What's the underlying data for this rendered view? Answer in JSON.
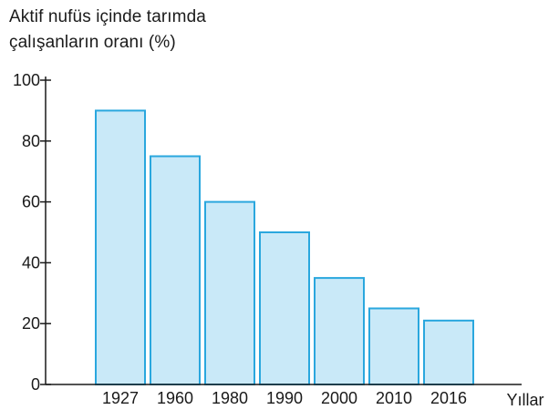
{
  "chart_data": {
    "type": "bar",
    "ylabel_lines": [
      "Aktif nufüs içinde tarımda",
      "çalışanların oranı (%)"
    ],
    "xlabel": "Yıllar",
    "categories": [
      "1927",
      "1960",
      "1980",
      "1990",
      "2000",
      "2010",
      "2016"
    ],
    "values": [
      90,
      75,
      60,
      50,
      35,
      25,
      21
    ],
    "ylim": [
      0,
      100
    ],
    "yticks": [
      0,
      20,
      40,
      60,
      80,
      100
    ],
    "grid": false,
    "legend": "none",
    "colors": {
      "bar_fill": "#c9e9f8",
      "bar_stroke": "#2aa7de",
      "axis": "#1a1a1a"
    }
  }
}
